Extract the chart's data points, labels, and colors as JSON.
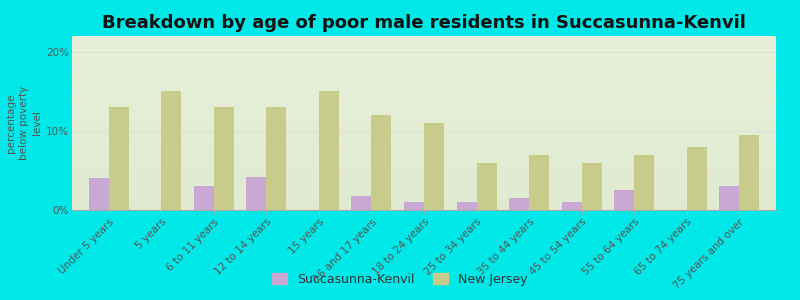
{
  "title": "Breakdown by age of poor male residents in Succasunna-Kenvil",
  "ylabel": "percentage\nbelow poverty\nlevel",
  "categories": [
    "Under 5 years",
    "5 years",
    "6 to 11 years",
    "12 to 14 years",
    "15 years",
    "16 and 17 years",
    "18 to 24 years",
    "25 to 34 years",
    "35 to 44 years",
    "45 to 54 years",
    "55 to 64 years",
    "65 to 74 years",
    "75 years and over"
  ],
  "succasunna_values": [
    4.0,
    0.0,
    3.0,
    4.2,
    0.0,
    1.8,
    1.0,
    1.0,
    1.5,
    1.0,
    2.5,
    0.0,
    3.0
  ],
  "nj_values": [
    13.0,
    15.0,
    13.0,
    13.0,
    15.0,
    12.0,
    11.0,
    6.0,
    7.0,
    6.0,
    7.0,
    8.0,
    9.5
  ],
  "succasunna_color": "#c9a8d4",
  "nj_color": "#c8cc8a",
  "outer_bg": "#00e8e8",
  "ylim": [
    0,
    22
  ],
  "yticks": [
    0,
    10,
    20
  ],
  "ytick_labels": [
    "0%",
    "10%",
    "20%"
  ],
  "grid_color": "#e0e0d0",
  "title_fontsize": 13,
  "ylabel_fontsize": 7.5,
  "tick_fontsize": 7.5,
  "legend_fontsize": 9,
  "bar_width": 0.38,
  "succasunna_label": "Succasunna-Kenvil",
  "nj_label": "New Jersey"
}
